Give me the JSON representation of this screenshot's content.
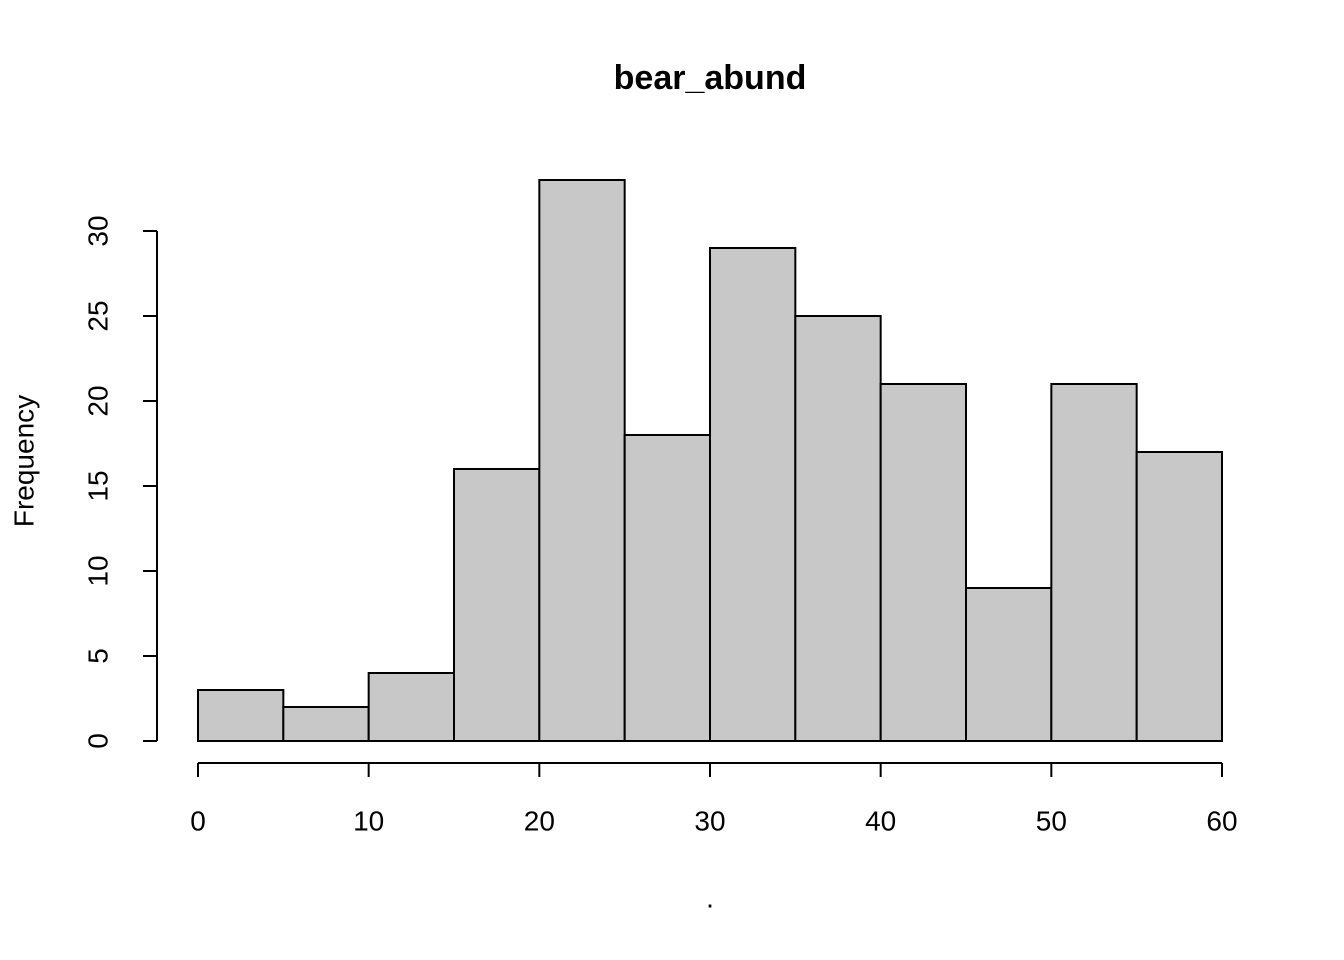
{
  "chart_data": {
    "type": "histogram",
    "title": "bear_abund",
    "x_label": ".",
    "y_label": "Frequency",
    "bins": [
      0,
      5,
      10,
      15,
      20,
      25,
      30,
      35,
      40,
      45,
      50,
      55,
      60
    ],
    "counts": [
      3,
      2,
      4,
      16,
      33,
      18,
      29,
      25,
      21,
      9,
      21,
      17
    ],
    "color": "#c8c8c8",
    "xlim": [
      0,
      60
    ],
    "xticks": [
      0,
      10,
      20,
      30,
      40,
      50,
      60
    ],
    "ylim": [
      0,
      33
    ],
    "yticks": [
      0,
      5,
      10,
      15,
      20,
      25,
      30
    ]
  }
}
